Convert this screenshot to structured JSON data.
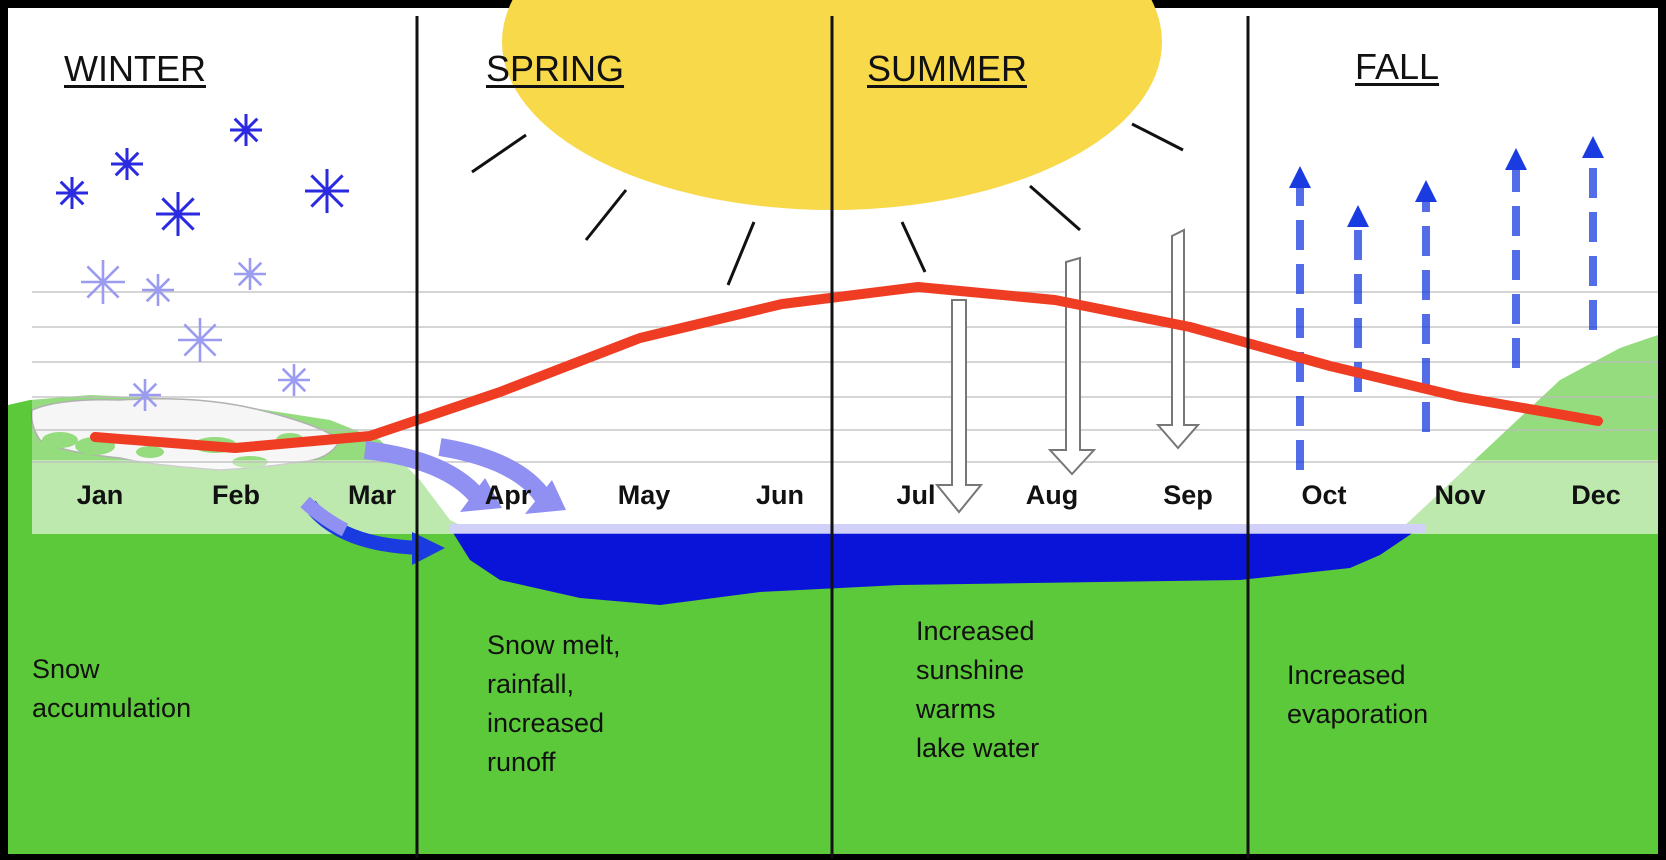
{
  "seasons": [
    {
      "name": "WINTER",
      "description": "Snow\naccumulation"
    },
    {
      "name": "SPRING",
      "description": "Snow melt,\nrainfall,\nincreased\nrunoff"
    },
    {
      "name": "SUMMER",
      "description": "Increased\nsunshine\nwarms\nlake water"
    },
    {
      "name": "FALL",
      "description": "Increased\nevaporation"
    }
  ],
  "months": [
    "Jan",
    "Feb",
    "Mar",
    "Apr",
    "May",
    "Jun",
    "Jul",
    "Aug",
    "Sep",
    "Oct",
    "Nov",
    "Dec"
  ],
  "colors": {
    "background": "#ffffff",
    "ground": "#5cc93a",
    "ground_light": "#a3e08f",
    "lake": "#0a14d8",
    "lake_surface": "#8a8cf0",
    "sun": "#f7d94a",
    "temperature_line": "#ef3d24",
    "snowflake": "#2a2ae0",
    "snowflake_light": "#9b9bf0",
    "runoff_arrow": "#8f90f2",
    "evaporation_arrow": "#1a3be0"
  },
  "icons": [
    "sun-icon",
    "snowflake-icon",
    "runoff-arrow-icon",
    "sunlight-arrow-icon",
    "evaporation-arrow-icon"
  ]
}
